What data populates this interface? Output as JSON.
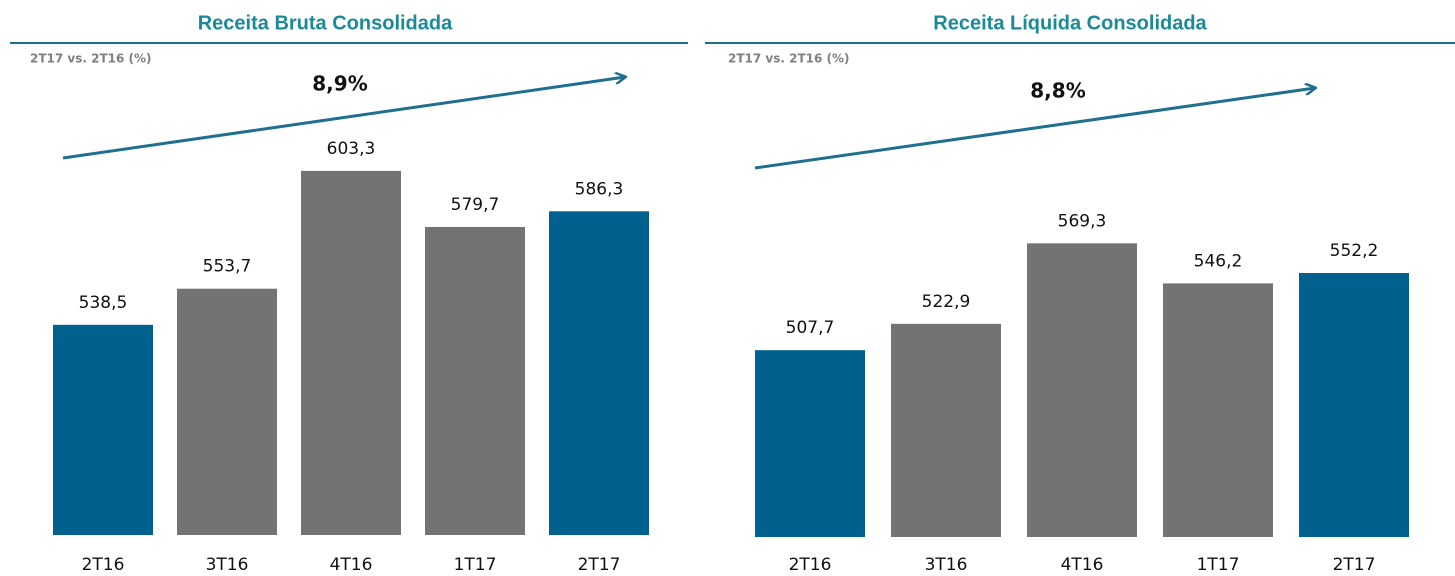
{
  "chart_data": [
    {
      "type": "bar",
      "title": "Receita Bruta Consolidada",
      "subtitle": "2T17 vs. 2T16 (%)",
      "annotation": "8,9%",
      "categories": [
        "2T16",
        "3T16",
        "4T16",
        "1T17",
        "2T17"
      ],
      "values": [
        538.5,
        553.7,
        603.3,
        579.7,
        586.3
      ],
      "value_labels": [
        "538,5",
        "553,7",
        "603,3",
        "579,7",
        "586,3"
      ],
      "colors": [
        "#00618f",
        "#737373",
        "#737373",
        "#737373",
        "#00618f"
      ],
      "ylim": [
        450,
        650
      ]
    },
    {
      "type": "bar",
      "title": "Receita Líquida Consolidada",
      "subtitle": "2T17 vs. 2T16 (%)",
      "annotation": "8,8%",
      "categories": [
        "2T16",
        "3T16",
        "4T16",
        "1T17",
        "2T17"
      ],
      "values": [
        507.7,
        522.9,
        569.3,
        546.2,
        552.2
      ],
      "value_labels": [
        "507,7",
        "522,9",
        "569,3",
        "546,2",
        "552,2"
      ],
      "colors": [
        "#00618f",
        "#737373",
        "#737373",
        "#737373",
        "#00618f"
      ],
      "ylim": [
        400,
        675
      ]
    }
  ]
}
